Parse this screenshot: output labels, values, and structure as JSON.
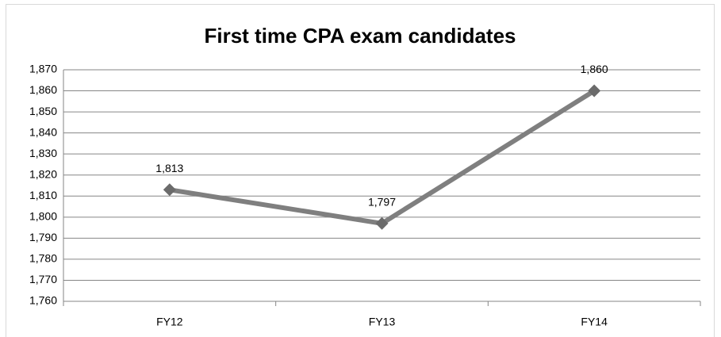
{
  "chart_data": {
    "type": "line",
    "title": "First time CPA exam candidates",
    "categories": [
      "FY12",
      "FY13",
      "FY14"
    ],
    "series": [
      {
        "name": "First time CPA exam candidates",
        "color": "#7f7f7f",
        "values": [
          1813,
          1797,
          1860
        ],
        "value_labels": [
          "1,813",
          "1,797",
          "1,860"
        ]
      }
    ],
    "ylim": [
      1760,
      1870
    ],
    "yticks": [
      {
        "value": 1760,
        "label": "1,760"
      },
      {
        "value": 1770,
        "label": "1,770"
      },
      {
        "value": 1780,
        "label": "1,780"
      },
      {
        "value": 1790,
        "label": "1,790"
      },
      {
        "value": 1800,
        "label": "1,800"
      },
      {
        "value": 1810,
        "label": "1,810"
      },
      {
        "value": 1820,
        "label": "1,820"
      },
      {
        "value": 1830,
        "label": "1,830"
      },
      {
        "value": 1840,
        "label": "1,840"
      },
      {
        "value": 1850,
        "label": "1,850"
      },
      {
        "value": 1860,
        "label": "1,860"
      },
      {
        "value": 1870,
        "label": "1,870"
      }
    ],
    "grid": true,
    "legend": false
  }
}
